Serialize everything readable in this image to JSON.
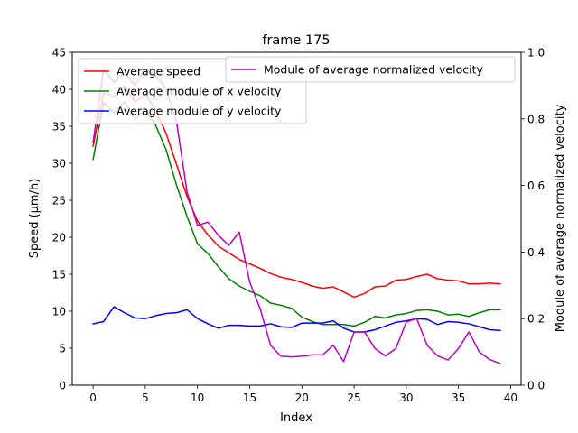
{
  "chart_data": {
    "type": "line",
    "title": "frame 175",
    "xlabel": "Index",
    "ylabel": "Speed (μm/h)",
    "y2label": "Module of average normalized velocity",
    "xlim": [
      -2,
      41
    ],
    "ylim": [
      0,
      45
    ],
    "y2lim": [
      0,
      1.0
    ],
    "xticks": [
      0,
      5,
      10,
      15,
      20,
      25,
      30,
      35,
      40
    ],
    "yticks": [
      0,
      5,
      10,
      15,
      20,
      25,
      30,
      35,
      40,
      45
    ],
    "y2ticks": [
      0.0,
      0.2,
      0.4,
      0.6,
      0.8,
      1.0
    ],
    "x": [
      0,
      1,
      2,
      3,
      4,
      5,
      6,
      7,
      8,
      9,
      10,
      11,
      12,
      13,
      14,
      15,
      16,
      17,
      18,
      19,
      20,
      21,
      22,
      23,
      24,
      25,
      26,
      27,
      28,
      29,
      30,
      31,
      32,
      33,
      34,
      35,
      36,
      37,
      38,
      39
    ],
    "series": [
      {
        "name": "Average speed",
        "axis": "left",
        "color": "#ff0000",
        "values": [
          32.3,
          39.5,
          39.0,
          40.5,
          38.3,
          39.3,
          37.2,
          34.0,
          29.8,
          25.5,
          22.2,
          20.3,
          18.8,
          17.9,
          17.0,
          16.4,
          15.8,
          15.1,
          14.6,
          14.3,
          13.9,
          13.4,
          13.1,
          13.3,
          12.6,
          11.9,
          12.4,
          13.3,
          13.4,
          14.2,
          14.3,
          14.7,
          15.0,
          14.4,
          14.2,
          14.1,
          13.7,
          13.7,
          13.8,
          13.7
        ]
      },
      {
        "name": "Average module of x velocity",
        "axis": "left",
        "color": "#008000",
        "values": [
          30.5,
          38.2,
          36.8,
          38.3,
          35.9,
          37.4,
          35.1,
          31.8,
          27.0,
          22.8,
          19.1,
          17.8,
          16.0,
          14.4,
          13.4,
          12.7,
          12.1,
          11.1,
          10.8,
          10.4,
          9.2,
          8.6,
          8.2,
          8.2,
          8.2,
          8.0,
          8.5,
          9.3,
          9.1,
          9.5,
          9.7,
          10.1,
          10.2,
          10.0,
          9.5,
          9.6,
          9.3,
          9.8,
          10.2,
          10.2
        ]
      },
      {
        "name": "Average module of y velocity",
        "axis": "left",
        "color": "#0000ff",
        "values": [
          8.3,
          8.6,
          10.6,
          9.8,
          9.1,
          9.0,
          9.4,
          9.7,
          9.8,
          10.2,
          9.0,
          8.3,
          7.7,
          8.1,
          8.1,
          8.0,
          8.0,
          8.3,
          7.9,
          7.8,
          8.4,
          8.4,
          8.4,
          8.7,
          7.7,
          7.2,
          7.2,
          7.5,
          8.0,
          8.5,
          8.7,
          9.0,
          8.9,
          8.2,
          8.6,
          8.5,
          8.3,
          7.9,
          7.5,
          7.4
        ]
      },
      {
        "name": "Module of average normalized velocity",
        "axis": "right",
        "color": "#bf00bf",
        "values": [
          0.73,
          0.95,
          0.91,
          0.94,
          0.9,
          0.95,
          0.93,
          0.89,
          0.79,
          0.58,
          0.48,
          0.49,
          0.45,
          0.42,
          0.46,
          0.31,
          0.23,
          0.12,
          0.087,
          0.085,
          0.087,
          0.091,
          0.091,
          0.12,
          0.071,
          0.16,
          0.16,
          0.11,
          0.088,
          0.11,
          0.19,
          0.2,
          0.12,
          0.088,
          0.076,
          0.11,
          0.16,
          0.1,
          0.077,
          0.065
        ]
      }
    ],
    "legend_left": [
      "Average speed",
      "Average module of x velocity",
      "Average module of y velocity"
    ],
    "legend_right": [
      "Module of average normalized velocity"
    ],
    "legend_placement": "upper-left (left axis), upper-right (right axis)",
    "grid": false
  }
}
